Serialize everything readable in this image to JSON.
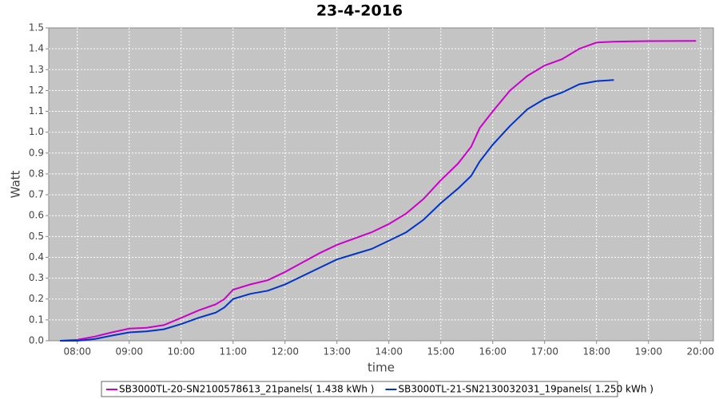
{
  "chart_data": {
    "type": "line",
    "title": "23-4-2016",
    "x_label": "time",
    "y_label": "Watt",
    "x": [
      "07:40",
      "08:00",
      "08:20",
      "08:40",
      "09:00",
      "09:20",
      "09:40",
      "10:00",
      "10:20",
      "10:40",
      "10:50",
      "11:00",
      "11:20",
      "11:40",
      "12:00",
      "12:20",
      "12:40",
      "13:00",
      "13:20",
      "13:40",
      "14:00",
      "14:20",
      "14:40",
      "15:00",
      "15:20",
      "15:35",
      "15:45",
      "16:00",
      "16:20",
      "16:40",
      "17:00",
      "17:20",
      "17:40",
      "18:00",
      "18:20",
      "18:30",
      "19:00",
      "19:55"
    ],
    "series": [
      {
        "name": "SB3000TL-20-SN2100578613_21panels( 1.438 kWh )",
        "color": "#cc00cc",
        "values": [
          0,
          0.005,
          0.02,
          0.04,
          0.058,
          0.062,
          0.075,
          0.11,
          0.145,
          0.175,
          0.2,
          0.245,
          0.27,
          0.29,
          0.33,
          0.375,
          0.42,
          0.46,
          0.49,
          0.52,
          0.56,
          0.61,
          0.68,
          0.77,
          0.85,
          0.93,
          1.02,
          1.1,
          1.2,
          1.27,
          1.32,
          1.35,
          1.4,
          1.43,
          1.434,
          1.435,
          1.437,
          1.438
        ]
      },
      {
        "name": "SB3000TL-21-SN2130032031_19panels( 1.250 kWh )",
        "color": "#0033cc",
        "values": [
          0,
          0,
          0.008,
          0.025,
          0.04,
          0.045,
          0.055,
          0.08,
          0.11,
          0.135,
          0.16,
          0.2,
          0.225,
          0.24,
          0.27,
          0.31,
          0.35,
          0.39,
          0.415,
          0.44,
          0.48,
          0.52,
          0.58,
          0.66,
          0.73,
          0.79,
          0.86,
          0.94,
          1.03,
          1.11,
          1.16,
          1.19,
          1.23,
          1.245,
          1.25,
          null,
          null,
          null
        ]
      }
    ],
    "xlim": [
      "07:27",
      "20:15"
    ],
    "xticks": [
      "08:00",
      "09:00",
      "10:00",
      "11:00",
      "12:00",
      "13:00",
      "14:00",
      "15:00",
      "16:00",
      "17:00",
      "18:00",
      "19:00",
      "20:00"
    ],
    "ylim": [
      0,
      1.5
    ],
    "yticks": [
      {
        "value": 0,
        "label": "0.0"
      },
      0.1,
      0.2,
      0.3,
      0.4,
      0.5,
      0.6,
      0.7,
      0.8,
      0.9,
      {
        "value": 1,
        "label": "1.0"
      },
      1.1,
      1.2,
      1.3,
      1.4,
      1.5
    ],
    "grid": true,
    "legend": "bottom"
  }
}
